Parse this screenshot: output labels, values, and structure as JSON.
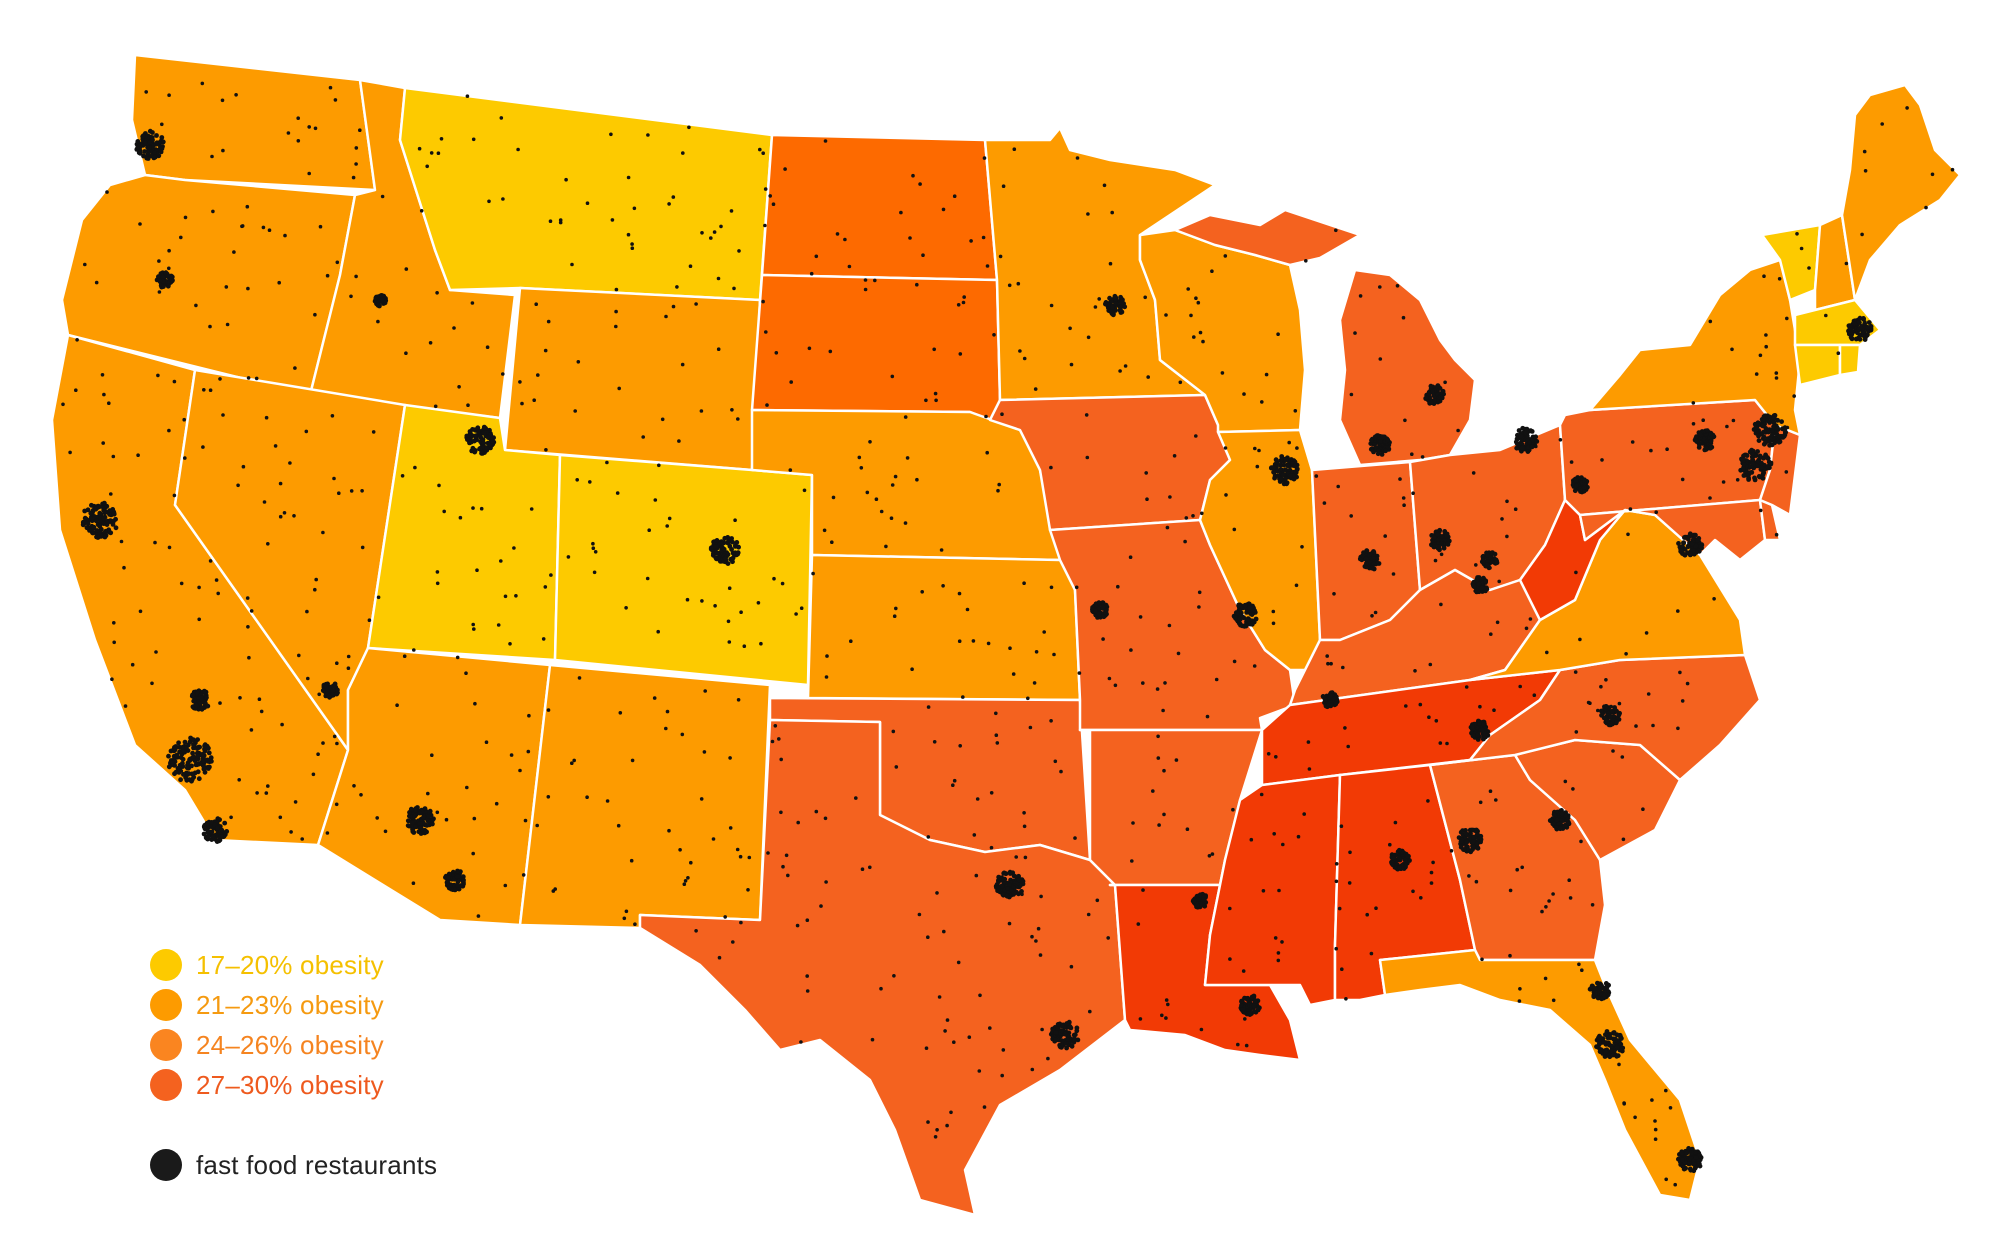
{
  "colors": {
    "band_17_20": "#FDCA00",
    "band_21_23": "#FD9B00",
    "band_24_26": "#FA8520",
    "band_27_30": "#F4621F",
    "highest": "#F23A05",
    "nd_sd": "#FD6A00",
    "restaurant_dot": "#111111",
    "border": "#ffffff"
  },
  "legend": {
    "items": [
      {
        "label": "17–20% obesity",
        "color": "#FDCA00",
        "text_color": "#F5C000"
      },
      {
        "label": "21–23% obesity",
        "color": "#FD9B00",
        "text_color": "#F59A10"
      },
      {
        "label": "24–26% obesity",
        "color": "#FA8520",
        "text_color": "#F58420"
      },
      {
        "label": "27–30% obesity",
        "color": "#F4621F",
        "text_color": "#EE5A1E"
      }
    ],
    "restaurants_label": "fast food restaurants",
    "restaurants_color": "#1a1a1a"
  },
  "states": [
    {
      "id": "WA",
      "band": "band_21_23"
    },
    {
      "id": "OR",
      "band": "band_21_23"
    },
    {
      "id": "CA",
      "band": "band_21_23"
    },
    {
      "id": "ID",
      "band": "band_21_23"
    },
    {
      "id": "NV",
      "band": "band_21_23"
    },
    {
      "id": "MT",
      "band": "band_17_20"
    },
    {
      "id": "WY",
      "band": "band_21_23"
    },
    {
      "id": "UT",
      "band": "band_17_20"
    },
    {
      "id": "CO",
      "band": "band_17_20"
    },
    {
      "id": "AZ",
      "band": "band_21_23"
    },
    {
      "id": "NM",
      "band": "band_21_23"
    },
    {
      "id": "ND",
      "band": "nd_sd"
    },
    {
      "id": "SD",
      "band": "nd_sd"
    },
    {
      "id": "NE",
      "band": "band_21_23"
    },
    {
      "id": "KS",
      "band": "band_21_23"
    },
    {
      "id": "OK",
      "band": "band_27_30"
    },
    {
      "id": "TX",
      "band": "band_27_30"
    },
    {
      "id": "MN",
      "band": "band_21_23"
    },
    {
      "id": "IA",
      "band": "band_27_30"
    },
    {
      "id": "MO",
      "band": "band_27_30"
    },
    {
      "id": "AR",
      "band": "band_27_30"
    },
    {
      "id": "LA",
      "band": "highest"
    },
    {
      "id": "WI",
      "band": "band_21_23"
    },
    {
      "id": "IL",
      "band": "band_21_23"
    },
    {
      "id": "MI",
      "band": "band_27_30"
    },
    {
      "id": "IN",
      "band": "band_27_30"
    },
    {
      "id": "OH",
      "band": "band_27_30"
    },
    {
      "id": "KY",
      "band": "band_27_30"
    },
    {
      "id": "TN",
      "band": "highest"
    },
    {
      "id": "MS",
      "band": "highest"
    },
    {
      "id": "AL",
      "band": "highest"
    },
    {
      "id": "GA",
      "band": "band_27_30"
    },
    {
      "id": "FL",
      "band": "band_21_23"
    },
    {
      "id": "SC",
      "band": "band_27_30"
    },
    {
      "id": "NC",
      "band": "band_27_30"
    },
    {
      "id": "VA",
      "band": "band_21_23"
    },
    {
      "id": "WV",
      "band": "highest"
    },
    {
      "id": "PA",
      "band": "band_27_30"
    },
    {
      "id": "NY",
      "band": "band_21_23"
    },
    {
      "id": "VT",
      "band": "band_17_20"
    },
    {
      "id": "NH",
      "band": "band_21_23"
    },
    {
      "id": "ME",
      "band": "band_21_23"
    },
    {
      "id": "MA",
      "band": "band_17_20"
    },
    {
      "id": "CT",
      "band": "band_17_20"
    },
    {
      "id": "RI",
      "band": "band_17_20"
    },
    {
      "id": "NJ",
      "band": "band_27_30"
    },
    {
      "id": "DE",
      "band": "band_27_30"
    },
    {
      "id": "MD",
      "band": "band_27_30"
    },
    {
      "id": "MIU",
      "band": "band_27_30"
    }
  ]
}
